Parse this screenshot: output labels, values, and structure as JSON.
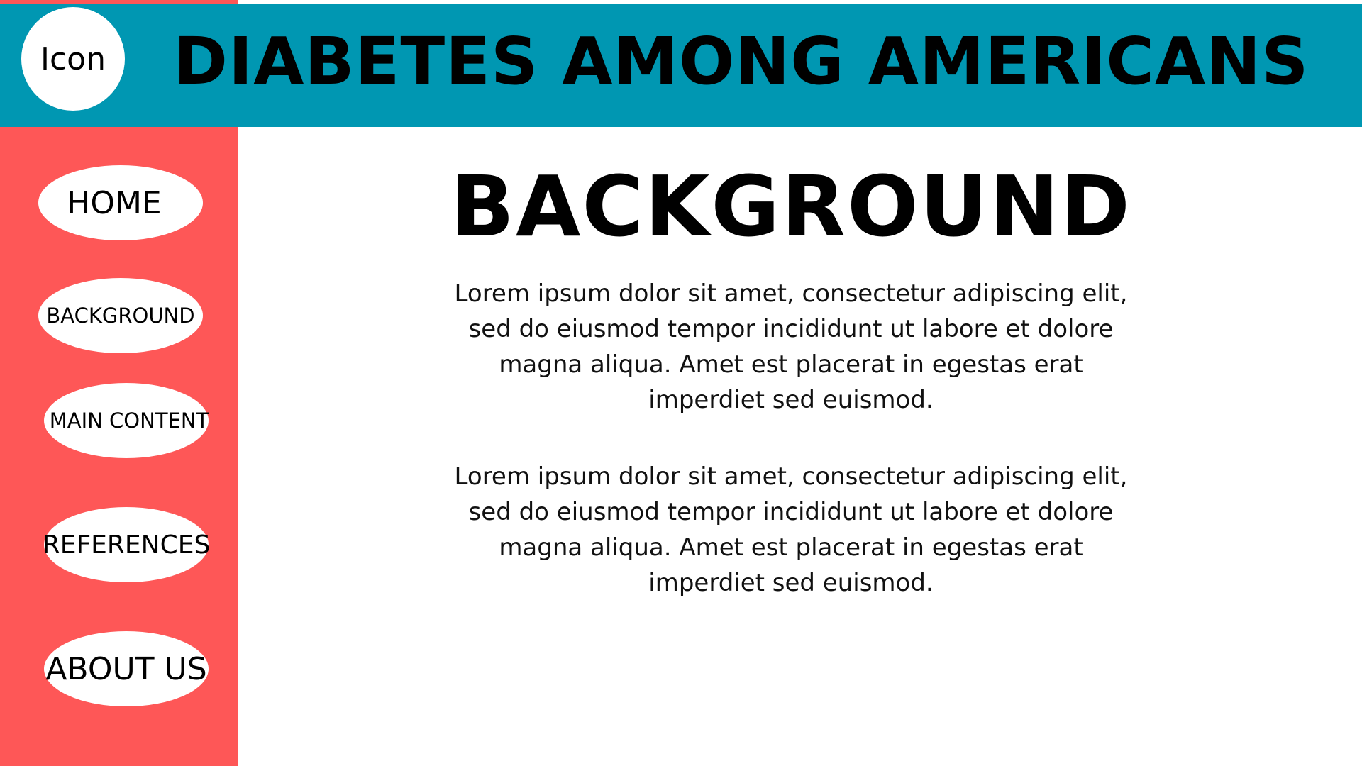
{
  "header": {
    "logo_label": "Icon",
    "title": "DIABETES AMONG AMERICANS"
  },
  "sidebar": {
    "items": [
      {
        "label": "HOME"
      },
      {
        "label": "BACKGROUND"
      },
      {
        "label": "MAIN CONTENT"
      },
      {
        "label": "REFERENCES"
      },
      {
        "label": "ABOUT US"
      }
    ]
  },
  "main": {
    "heading": "BACKGROUND",
    "paragraphs": [
      "Lorem ipsum dolor sit amet, consectetur adipiscing elit, sed do eiusmod tempor incididunt ut labore et dolore magna aliqua. Amet est placerat in egestas erat imperdiet sed euismod.",
      "Lorem ipsum dolor sit amet, consectetur adipiscing elit, sed do eiusmod tempor incididunt ut labore et dolore magna aliqua. Amet est placerat in egestas erat imperdiet sed euismod."
    ]
  },
  "colors": {
    "header_bg": "#0097b2",
    "sidebar_bg": "#fe5757",
    "nav_pill_bg": "#ffffff",
    "text": "#000000"
  }
}
